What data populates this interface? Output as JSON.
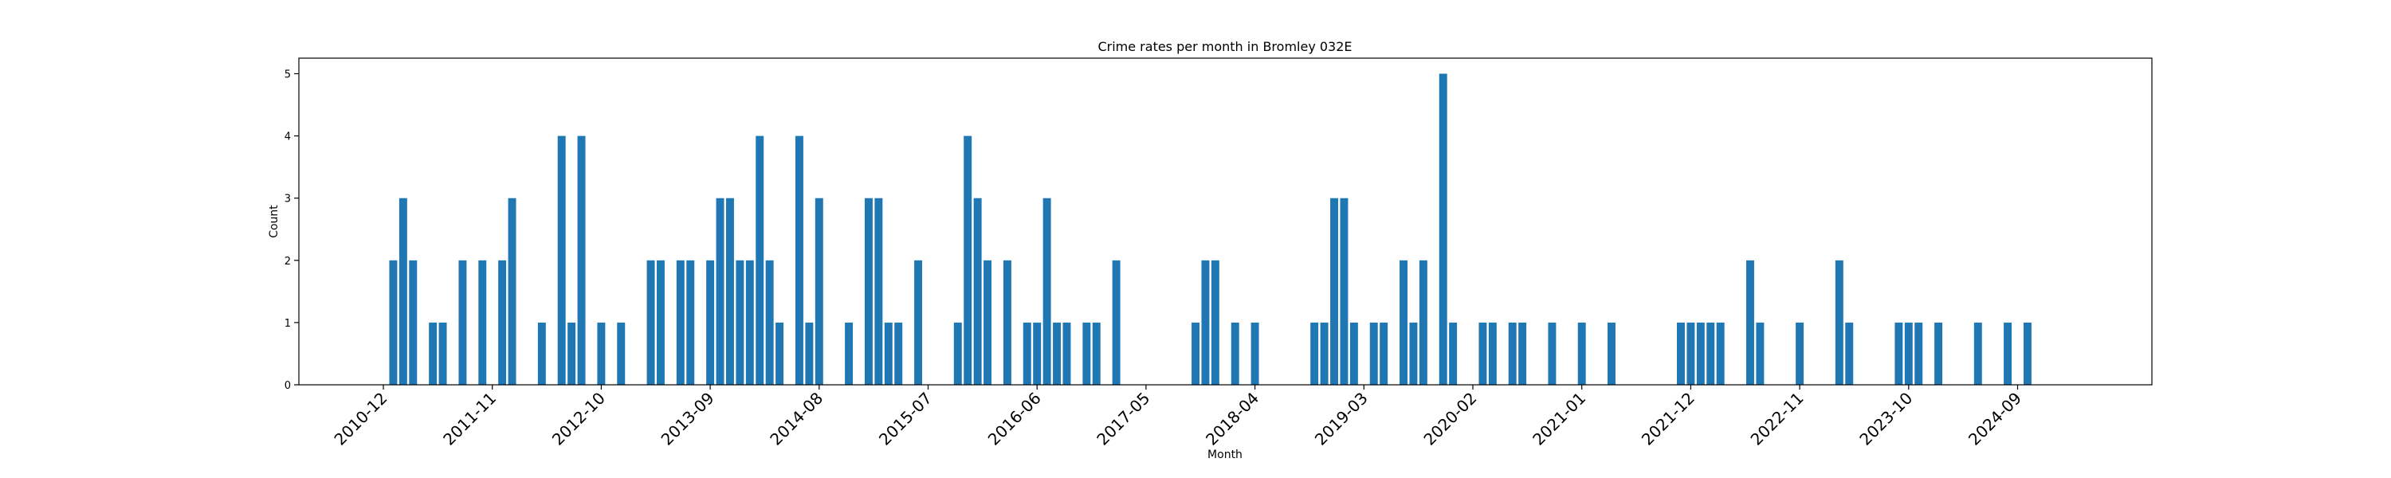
{
  "chart_data": {
    "type": "bar",
    "title": "Crime rates per month in Bromley 032E",
    "xlabel": "Month",
    "ylabel": "Count",
    "bar_color": "#1f77b4",
    "ylim": [
      0,
      5.25
    ],
    "yticks": [
      0,
      1,
      2,
      3,
      4,
      5
    ],
    "xtick_labels": [
      "2010-12",
      "2011-11",
      "2012-10",
      "2013-09",
      "2014-08",
      "2015-07",
      "2016-06",
      "2017-05",
      "2018-04",
      "2019-03",
      "2020-02",
      "2021-01",
      "2021-12",
      "2022-11",
      "2023-10",
      "2024-09"
    ],
    "x": [
      "2011-01",
      "2011-02",
      "2011-03",
      "2011-05",
      "2011-06",
      "2011-08",
      "2011-10",
      "2011-12",
      "2012-01",
      "2012-04",
      "2012-06",
      "2012-07",
      "2012-08",
      "2012-10",
      "2012-12",
      "2013-03",
      "2013-04",
      "2013-06",
      "2013-07",
      "2013-09",
      "2013-10",
      "2013-11",
      "2013-12",
      "2014-01",
      "2014-02",
      "2014-03",
      "2014-04",
      "2014-06",
      "2014-07",
      "2014-08",
      "2014-11",
      "2015-01",
      "2015-02",
      "2015-03",
      "2015-04",
      "2015-06",
      "2015-10",
      "2015-11",
      "2015-12",
      "2016-01",
      "2016-03",
      "2016-05",
      "2016-06",
      "2016-07",
      "2016-08",
      "2016-09",
      "2016-11",
      "2016-12",
      "2017-02",
      "2017-10",
      "2017-11",
      "2017-12",
      "2018-02",
      "2018-04",
      "2018-10",
      "2018-11",
      "2018-12",
      "2019-01",
      "2019-02",
      "2019-04",
      "2019-05",
      "2019-07",
      "2019-08",
      "2019-09",
      "2019-11",
      "2019-12",
      "2020-03",
      "2020-04",
      "2020-06",
      "2020-07",
      "2020-10",
      "2021-01",
      "2021-04",
      "2021-11",
      "2021-12",
      "2022-01",
      "2022-02",
      "2022-03",
      "2022-06",
      "2022-07",
      "2022-11",
      "2023-03",
      "2023-04",
      "2023-09",
      "2023-10",
      "2023-11",
      "2024-01",
      "2024-05",
      "2024-08",
      "2024-10"
    ],
    "values": [
      2,
      3,
      2,
      1,
      1,
      2,
      2,
      2,
      3,
      1,
      4,
      1,
      4,
      1,
      1,
      2,
      2,
      2,
      2,
      2,
      3,
      3,
      2,
      2,
      4,
      2,
      1,
      4,
      1,
      3,
      1,
      3,
      3,
      1,
      1,
      2,
      1,
      4,
      3,
      2,
      2,
      1,
      1,
      3,
      1,
      1,
      1,
      1,
      2,
      1,
      2,
      2,
      1,
      1,
      1,
      1,
      3,
      3,
      1,
      1,
      1,
      2,
      1,
      2,
      5,
      1,
      1,
      1,
      1,
      1,
      1,
      1,
      1,
      1,
      1,
      1,
      1,
      1,
      2,
      1,
      1,
      2,
      1,
      1,
      1,
      1,
      1,
      1,
      1,
      1
    ]
  }
}
